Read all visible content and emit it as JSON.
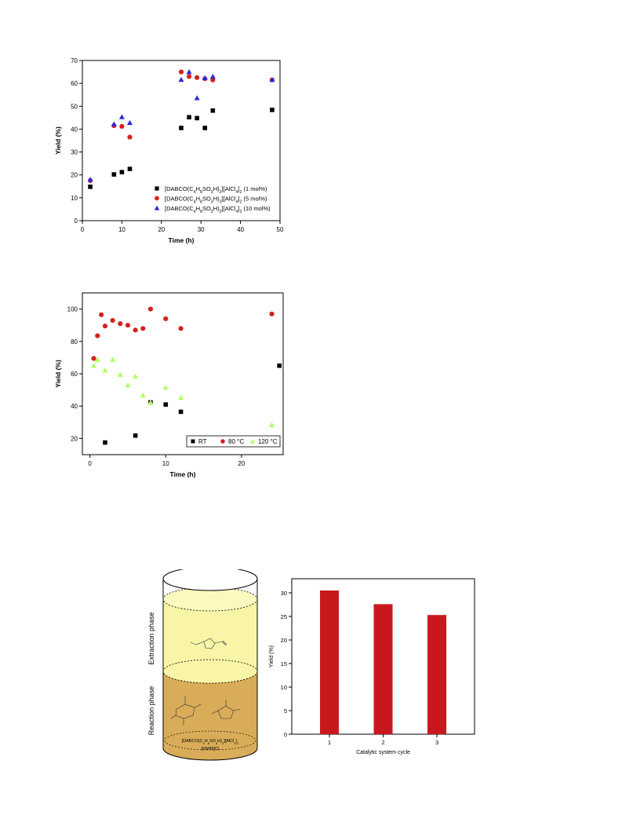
{
  "chart_data": [
    {
      "type": "scatter",
      "xlabel": "Time (h)",
      "ylabel": "Yield (%)",
      "xlim": [
        0,
        50
      ],
      "ylim": [
        0,
        70
      ],
      "xticks": [
        0,
        10,
        20,
        30,
        40,
        50
      ],
      "yticks": [
        0,
        10,
        20,
        30,
        40,
        50,
        60,
        70
      ],
      "legend": "bottom-right",
      "series": [
        {
          "name": "[DABCO(C4H8SO3H)2][AlCl4]2 (1 mol%)",
          "marker": "square",
          "color": "#000000",
          "x": [
            2,
            8,
            10,
            12,
            25,
            27,
            29,
            31,
            33,
            48
          ],
          "y": [
            14.8,
            20.2,
            21.2,
            22.6,
            40.5,
            45.2,
            44.8,
            40.5,
            48.1,
            48.4
          ]
        },
        {
          "name": "[DABCO(C4H8SO3H)2][AlCl4]2 (5 mol%)",
          "marker": "circle",
          "color": "#d42020",
          "x": [
            2,
            8,
            10,
            12,
            25,
            27,
            29,
            31,
            33,
            48
          ],
          "y": [
            17.5,
            41.5,
            41.2,
            36.5,
            65,
            63,
            62.5,
            62,
            61.5,
            61.5
          ]
        },
        {
          "name": "[DABCO(C4H8SO3H)2][AlCl4]2 (10 mol%)",
          "marker": "triangle",
          "color": "#2a2ad8",
          "x": [
            2,
            8,
            10,
            12,
            25,
            27,
            29,
            31,
            33,
            48
          ],
          "y": [
            18,
            42.2,
            45.3,
            42.8,
            61.6,
            65,
            53.6,
            62.4,
            63,
            61.6
          ]
        }
      ]
    },
    {
      "type": "scatter",
      "xlabel": "Time (h)",
      "ylabel": "Yield (%)",
      "xlim": [
        -1,
        25.5
      ],
      "ylim": [
        10,
        110
      ],
      "xticks": [
        0,
        10,
        20
      ],
      "yticks": [
        20,
        40,
        60,
        80,
        100
      ],
      "legend": "bottom-right",
      "series": [
        {
          "name": "RT",
          "marker": "square",
          "color": "#000000",
          "x": [
            2,
            6,
            8,
            10,
            12,
            25
          ],
          "y": [
            17.5,
            21.8,
            42.3,
            41,
            36.5,
            65
          ]
        },
        {
          "name": "80 °C",
          "marker": "circle",
          "color": "#d42020",
          "x": [
            0.5,
            1,
            1.5,
            2,
            3,
            4,
            5,
            6,
            7,
            8,
            10,
            12,
            24
          ],
          "y": [
            69.5,
            83.5,
            96.5,
            89.5,
            93,
            91,
            90,
            87,
            88,
            100,
            94,
            88,
            97
          ]
        },
        {
          "name": "120 °C",
          "marker": "triangle",
          "color": "#b0ff60",
          "x": [
            0.5,
            1,
            2,
            3,
            4,
            5,
            6,
            7,
            8,
            10,
            12,
            24
          ],
          "y": [
            65,
            68.7,
            62.1,
            68.7,
            59.4,
            53,
            58.4,
            46.7,
            42.3,
            51.5,
            45.3,
            28.4
          ]
        }
      ]
    },
    {
      "type": "bar",
      "xlabel": "Catalytic system cycle",
      "ylabel": "Yield (%)",
      "categories": [
        "1",
        "2",
        "3"
      ],
      "values": [
        30.5,
        27.6,
        25.3
      ],
      "ylim": [
        0,
        33
      ],
      "yticks": [
        0,
        5,
        10,
        15,
        20,
        25,
        30
      ],
      "color": "#c8181e"
    }
  ],
  "diagram": {
    "top_label": "Extraction phase",
    "bottom_label": "Reaction phase",
    "top_color": "#f8f6a6",
    "bottom_color": "#d8ac58",
    "catalyst_text": "[DABCO(C4H8SO3H)2][AlCl4]2",
    "solvent_text": "[EMIM]Cl"
  }
}
